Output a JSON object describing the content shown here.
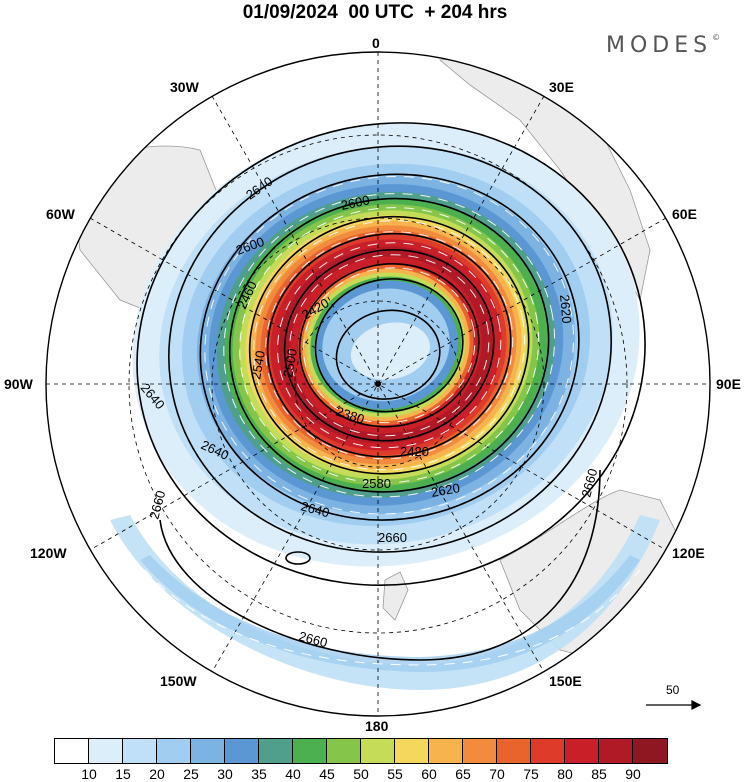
{
  "header": {
    "date": "01/09/2024",
    "run": "00 UTC",
    "lead": "+ 204 hrs",
    "brand": "MODES",
    "brand_mark": "©"
  },
  "longitude_labels": {
    "lon_0": "0",
    "lon_30e": "30E",
    "lon_60e": "60E",
    "lon_90e": "90E",
    "lon_120e": "120E",
    "lon_150e": "150E",
    "lon_180": "180",
    "lon_150w": "150W",
    "lon_120w": "120W",
    "lon_90w": "90W",
    "lon_60w": "60W",
    "lon_30w": "30W"
  },
  "contours": {
    "units": "gpdm",
    "labels": [
      "2380",
      "2420",
      "2420",
      "2460",
      "2500",
      "2540",
      "2580",
      "2600",
      "2600",
      "2620",
      "2620",
      "2640",
      "2640",
      "2640",
      "2640",
      "2660",
      "2660",
      "2660",
      "2660"
    ]
  },
  "vector_reference": {
    "value": "50"
  },
  "colorbar": {
    "colors": [
      "#ffffff",
      "#dceefa",
      "#bfe0f6",
      "#a0cdf0",
      "#7db3e3",
      "#5b98d3",
      "#4f9f8c",
      "#4cb04f",
      "#85c64a",
      "#c4dc58",
      "#f3d85c",
      "#f6b34e",
      "#f28b3d",
      "#e9632d",
      "#de3b2a",
      "#c91f28",
      "#b01a26",
      "#8e1721"
    ],
    "ticks": [
      "10",
      "15",
      "20",
      "25",
      "30",
      "35",
      "40",
      "45",
      "50",
      "55",
      "60",
      "65",
      "70",
      "75",
      "80",
      "85",
      "90"
    ]
  }
}
